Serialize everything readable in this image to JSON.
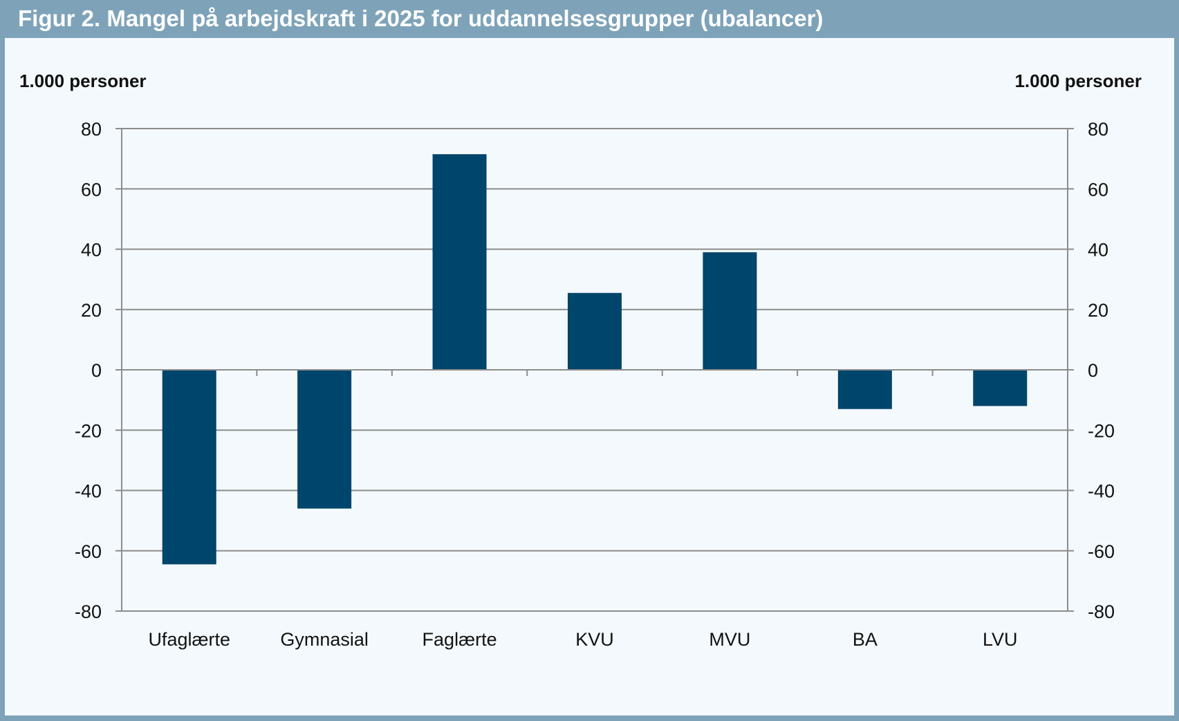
{
  "header": {
    "title": "Figur 2. Mangel på arbejdskraft i 2025 for uddannelsesgrupper (ubalancer)"
  },
  "chart_data": {
    "type": "bar",
    "title": "Figur 2. Mangel på arbejdskraft i 2025 for uddannelsesgrupper (ubalancer)",
    "ylabel_left": "1.000 personer",
    "ylabel_right": "1.000 personer",
    "categories": [
      "Ufaglærte",
      "Gymnasial",
      "Faglærte",
      "KVU",
      "MVU",
      "BA",
      "LVU"
    ],
    "values": [
      -64.5,
      -46,
      71.5,
      25.5,
      39,
      -13,
      -12
    ],
    "ylim": [
      -80,
      80
    ],
    "yticks": [
      80,
      60,
      40,
      20,
      0,
      -20,
      -40,
      -60,
      -80
    ],
    "yticks_labels": [
      "80",
      "60",
      "40",
      "20",
      "0",
      "-20",
      "-40",
      "-60",
      "-80"
    ],
    "grid": true,
    "bar_color": "#00456b",
    "grid_color": "#8c8c8c"
  }
}
